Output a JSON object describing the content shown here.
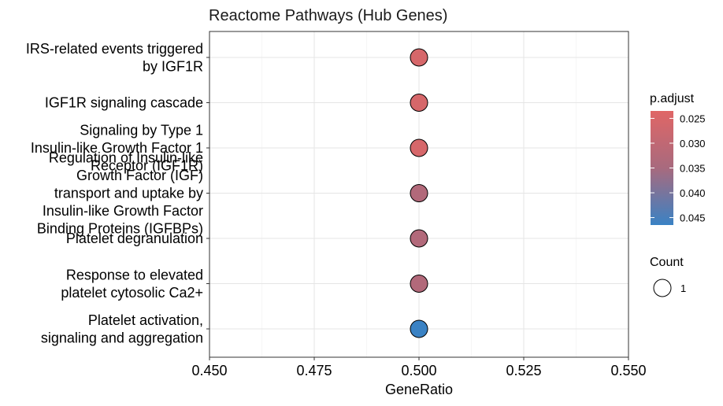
{
  "chart_data": {
    "type": "scatter",
    "title": "Reactome Pathways (Hub Genes)",
    "xlabel": "GeneRatio",
    "ylabel": "",
    "xlim": [
      0.45,
      0.55
    ],
    "xticks": [
      "0.450",
      "0.475",
      "0.500",
      "0.525",
      "0.550"
    ],
    "xtick_values": [
      0.45,
      0.475,
      0.5,
      0.525,
      0.55
    ],
    "grid": true,
    "categories": [
      [
        "IRS-related events triggered",
        "by IGF1R"
      ],
      [
        "IGF1R signaling cascade"
      ],
      [
        "Signaling by Type 1",
        "Insulin-like Growth Factor 1",
        "Receptor (IGF1R)"
      ],
      [
        "Regulation of Insulin-like",
        "Growth Factor (IGF)",
        "transport and uptake by",
        "Insulin-like Growth Factor",
        "Binding Proteins (IGFBPs)"
      ],
      [
        "Platelet degranulation"
      ],
      [
        "Response to elevated",
        "platelet cytosolic Ca2+"
      ],
      [
        "Platelet activation,",
        "signaling and aggregation"
      ]
    ],
    "points": [
      {
        "x": 0.5,
        "p_adjust": 0.0255,
        "count": 1
      },
      {
        "x": 0.5,
        "p_adjust": 0.0255,
        "count": 1
      },
      {
        "x": 0.5,
        "p_adjust": 0.0255,
        "count": 1
      },
      {
        "x": 0.5,
        "p_adjust": 0.033,
        "count": 1
      },
      {
        "x": 0.5,
        "p_adjust": 0.033,
        "count": 1
      },
      {
        "x": 0.5,
        "p_adjust": 0.033,
        "count": 1
      },
      {
        "x": 0.5,
        "p_adjust": 0.0465,
        "count": 1
      }
    ],
    "color_legend": {
      "title": "p.adjust",
      "ticks": [
        "0.025",
        "0.030",
        "0.035",
        "0.040",
        "0.045"
      ],
      "tick_values": [
        0.025,
        0.03,
        0.035,
        0.04,
        0.045
      ],
      "range": [
        0.0235,
        0.0465
      ],
      "low_color": "#e06666",
      "high_color": "#3a82c4"
    },
    "size_legend": {
      "title": "Count",
      "values": [
        "1"
      ]
    },
    "legend_position": "right"
  }
}
